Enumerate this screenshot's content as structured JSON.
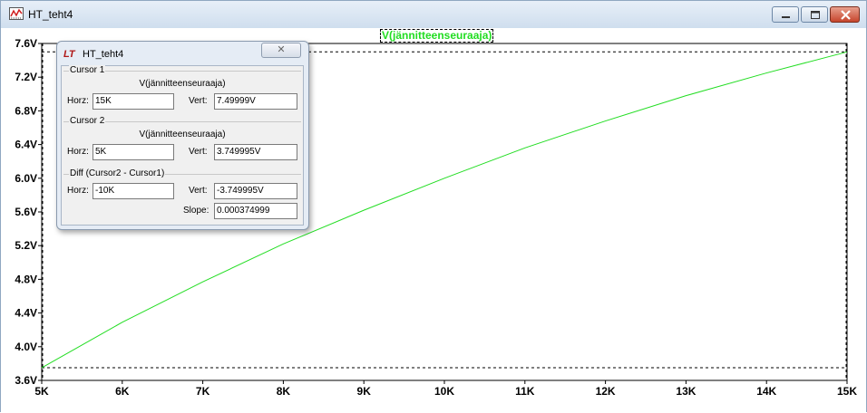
{
  "window": {
    "title": "HT_teht4"
  },
  "plot": {
    "trace_label": "V(jännitteenseuraaja)"
  },
  "chart_data": {
    "type": "line",
    "xlabel": "",
    "ylabel": "",
    "xlim": [
      5000,
      15000
    ],
    "ylim": [
      3.6,
      7.6
    ],
    "x_ticks": [
      "5K",
      "6K",
      "7K",
      "8K",
      "9K",
      "10K",
      "11K",
      "12K",
      "13K",
      "14K",
      "15K"
    ],
    "y_ticks": [
      "7.6V",
      "7.2V",
      "6.8V",
      "6.4V",
      "6.0V",
      "5.6V",
      "5.2V",
      "4.8V",
      "4.4V",
      "4.0V",
      "3.6V"
    ],
    "grid": false,
    "line_color": "#22dd22",
    "series": [
      {
        "name": "V(jännitteenseuraaja)",
        "x": [
          5000,
          6000,
          7000,
          8000,
          9000,
          10000,
          11000,
          12000,
          13000,
          14000,
          15000
        ],
        "y": [
          3.75,
          4.29,
          4.77,
          5.22,
          5.62,
          6.0,
          6.36,
          6.68,
          6.98,
          7.25,
          7.5
        ]
      }
    ],
    "cursor1": {
      "x": 15000,
      "y": 7.49999
    },
    "cursor2": {
      "x": 5000,
      "y": 3.749995
    }
  },
  "cursor_dialog": {
    "title": "HT_teht4",
    "close_glyph": "✕",
    "cursor1": {
      "title": "Cursor 1",
      "trace": "V(jännitteenseuraaja)",
      "horz_label": "Horz:",
      "horz": "15K",
      "vert_label": "Vert:",
      "vert": "7.49999V"
    },
    "cursor2": {
      "title": "Cursor 2",
      "trace": "V(jännitteenseuraaja)",
      "horz_label": "Horz:",
      "horz": "5K",
      "vert_label": "Vert:",
      "vert": "3.749995V"
    },
    "diff": {
      "title": "Diff (Cursor2 - Cursor1)",
      "horz_label": "Horz:",
      "horz": "-10K",
      "vert_label": "Vert:",
      "vert": "-3.749995V",
      "slope_label": "Slope:",
      "slope": "0.000374999"
    }
  }
}
